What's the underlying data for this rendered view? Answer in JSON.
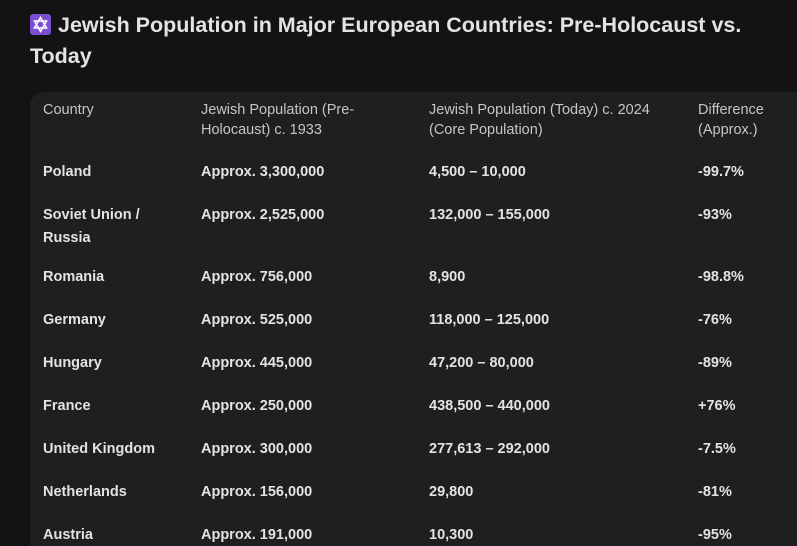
{
  "title": "Jewish Population in Major European Countries: Pre-Holocaust vs. Today",
  "title_icon": "star-of-david-icon",
  "colors": {
    "background": "#131314",
    "table_background": "#1e1f20",
    "icon_background": "#7c4fd0"
  },
  "table": {
    "headers": [
      "Country",
      "Jewish Population (Pre-Holocaust) c. 1933",
      "Jewish Population (Today) c. 2024 (Core Population)",
      "Difference (Approx.)"
    ],
    "rows": [
      [
        "Poland",
        "Approx. 3,300,000",
        "4,500 – 10,000",
        "-99.7%"
      ],
      [
        "Soviet Union / Russia",
        "Approx. 2,525,000",
        "132,000 – 155,000",
        "-93%"
      ],
      [
        "Romania",
        "Approx. 756,000",
        "8,900",
        "-98.8%"
      ],
      [
        "Germany",
        "Approx. 525,000",
        "118,000 – 125,000",
        "-76%"
      ],
      [
        "Hungary",
        "Approx. 445,000",
        "47,200 – 80,000",
        "-89%"
      ],
      [
        "France",
        "Approx. 250,000",
        "438,500 – 440,000",
        "+76%"
      ],
      [
        "United Kingdom",
        "Approx. 300,000",
        "277,613 – 292,000",
        "-7.5%"
      ],
      [
        "Netherlands",
        "Approx. 156,000",
        "29,800",
        "-81%"
      ],
      [
        "Austria",
        "Approx. 191,000",
        "10,300",
        "-95%"
      ]
    ]
  }
}
